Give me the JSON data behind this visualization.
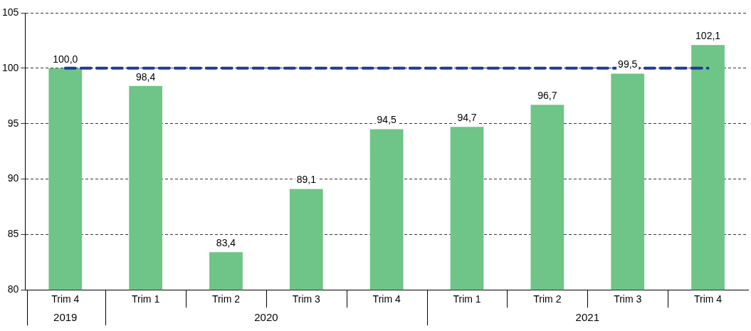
{
  "chart_data": {
    "type": "bar",
    "categories": [
      "Trim 4",
      "Trim 1",
      "Trim 2",
      "Trim 3",
      "Trim 4",
      "Trim 1",
      "Trim 2",
      "Trim 3",
      "Trim 4"
    ],
    "values": [
      100.0,
      98.4,
      83.4,
      89.1,
      94.5,
      94.7,
      96.7,
      99.5,
      102.1
    ],
    "value_labels": [
      "100,0",
      "98,4",
      "83,4",
      "89,1",
      "94,5",
      "94,7",
      "96,7",
      "99,5",
      "102,1"
    ],
    "color": "#6fc487",
    "ylim": [
      80,
      105
    ],
    "yticks": [
      80,
      85,
      90,
      95,
      100,
      105
    ],
    "grid": "y",
    "legend": false,
    "ref_lines": [
      {
        "axis": "y",
        "value": 100,
        "color": "#22389a",
        "line_style": "dashed"
      }
    ],
    "annotations": [
      "2019",
      "2020",
      "2021"
    ]
  }
}
